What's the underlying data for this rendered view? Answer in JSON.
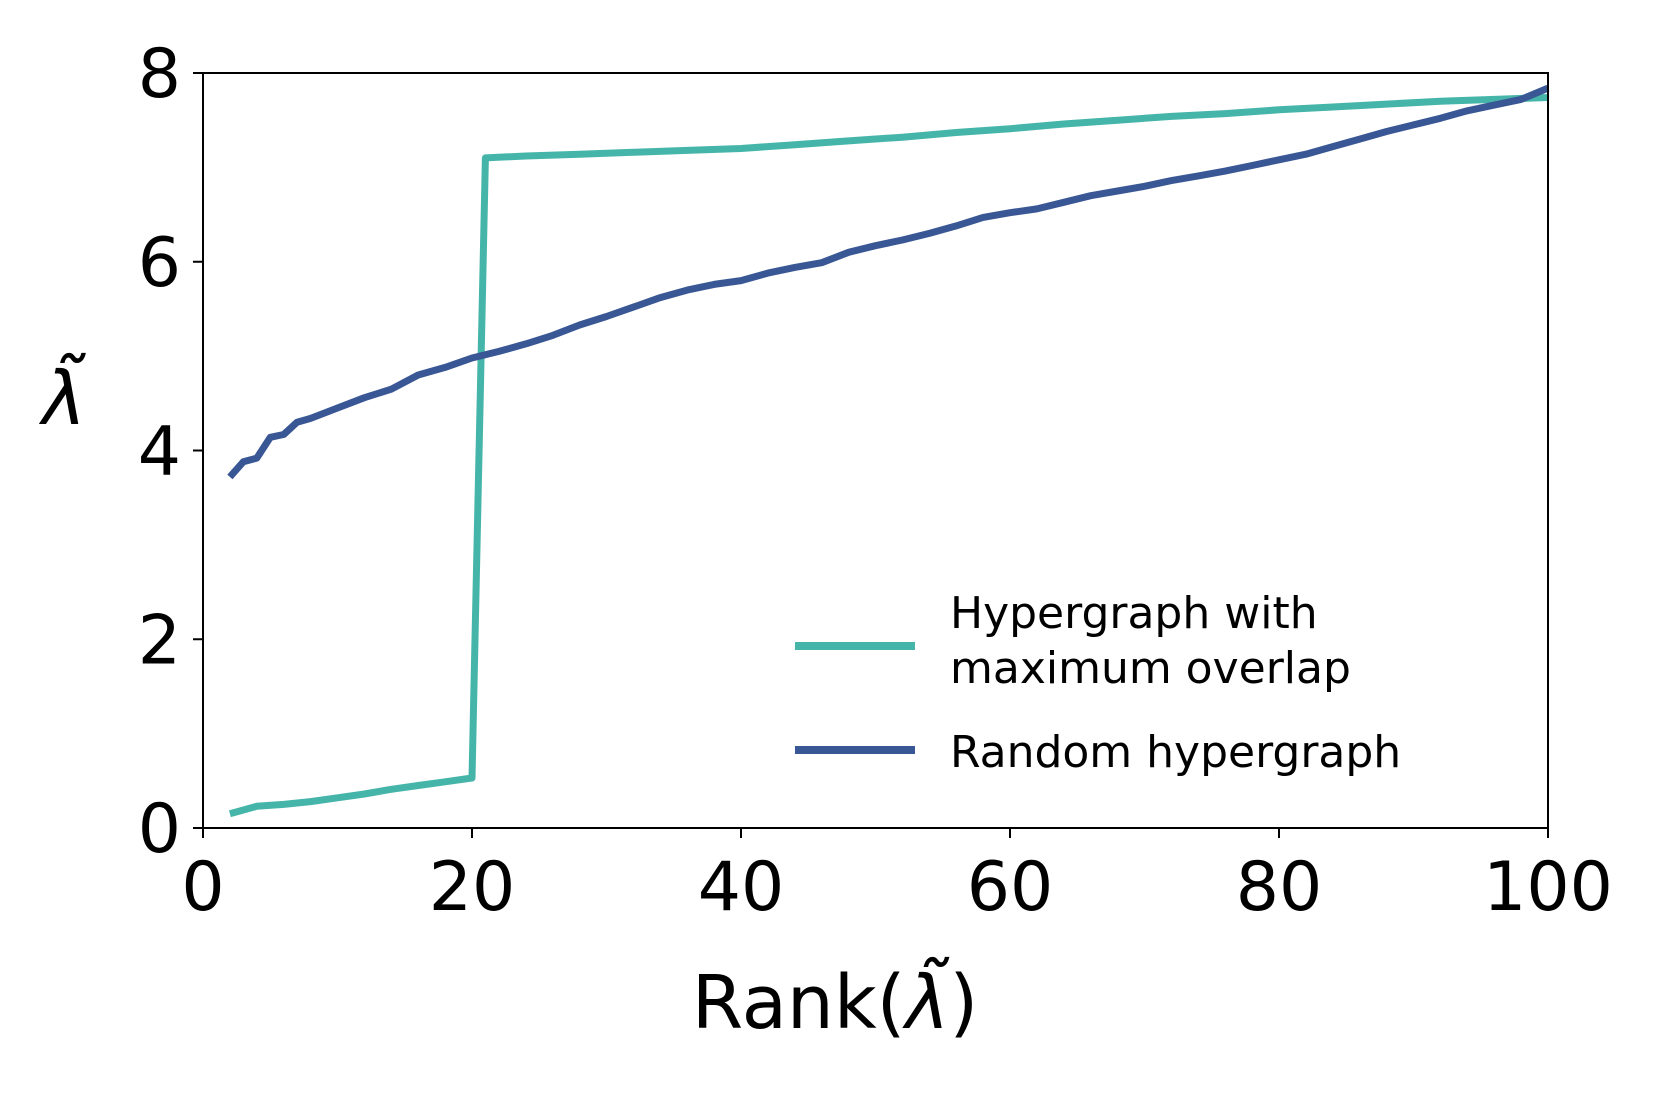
{
  "chart_data": {
    "type": "line",
    "title": "",
    "xlabel_prefix": "Rank(",
    "xlabel_symbol": "λ̃",
    "xlabel_suffix": ")",
    "ylabel": "λ̃",
    "xlim": [
      0,
      100
    ],
    "ylim": [
      0,
      8
    ],
    "xticks": [
      0,
      20,
      40,
      60,
      80,
      100
    ],
    "yticks": [
      0,
      2,
      4,
      6,
      8
    ],
    "xtick_labels": [
      "0",
      "20",
      "40",
      "60",
      "80",
      "100"
    ],
    "ytick_labels": [
      "0",
      "2",
      "4",
      "6",
      "8"
    ],
    "grid": false,
    "legend_position": "lower-right",
    "series": [
      {
        "name": "Hypergraph with maximum overlap",
        "legend_lines": [
          "Hypergraph with",
          "maximum overlap"
        ],
        "color": "#45b5aa",
        "x": [
          2,
          4,
          6,
          8,
          10,
          12,
          14,
          16,
          18,
          20,
          21,
          24,
          28,
          32,
          36,
          40,
          44,
          48,
          52,
          56,
          60,
          64,
          68,
          72,
          76,
          80,
          84,
          88,
          92,
          96,
          100
        ],
        "y": [
          0.15,
          0.23,
          0.25,
          0.28,
          0.32,
          0.36,
          0.41,
          0.45,
          0.49,
          0.53,
          7.1,
          7.12,
          7.14,
          7.16,
          7.18,
          7.2,
          7.24,
          7.28,
          7.32,
          7.37,
          7.41,
          7.46,
          7.5,
          7.54,
          7.57,
          7.61,
          7.64,
          7.67,
          7.7,
          7.72,
          7.74
        ]
      },
      {
        "name": "Random hypergraph",
        "legend_lines": [
          "Random hypergraph"
        ],
        "color": "#3a5795",
        "x": [
          2,
          3,
          4,
          5,
          6,
          7,
          8,
          10,
          12,
          14,
          16,
          18,
          20,
          22,
          24,
          26,
          28,
          30,
          32,
          34,
          36,
          38,
          40,
          42,
          44,
          46,
          48,
          50,
          52,
          54,
          56,
          58,
          60,
          62,
          64,
          66,
          68,
          70,
          72,
          74,
          76,
          78,
          80,
          82,
          84,
          86,
          88,
          90,
          92,
          94,
          96,
          98,
          100
        ],
        "y": [
          3.72,
          3.88,
          3.92,
          4.14,
          4.17,
          4.3,
          4.34,
          4.45,
          4.56,
          4.65,
          4.8,
          4.88,
          4.98,
          5.05,
          5.13,
          5.22,
          5.33,
          5.42,
          5.52,
          5.62,
          5.7,
          5.76,
          5.8,
          5.88,
          5.94,
          5.99,
          6.1,
          6.17,
          6.23,
          6.3,
          6.38,
          6.47,
          6.52,
          6.56,
          6.63,
          6.7,
          6.75,
          6.8,
          6.86,
          6.91,
          6.96,
          7.02,
          7.08,
          7.14,
          7.22,
          7.3,
          7.38,
          7.45,
          7.52,
          7.6,
          7.66,
          7.72,
          7.84
        ]
      }
    ]
  }
}
